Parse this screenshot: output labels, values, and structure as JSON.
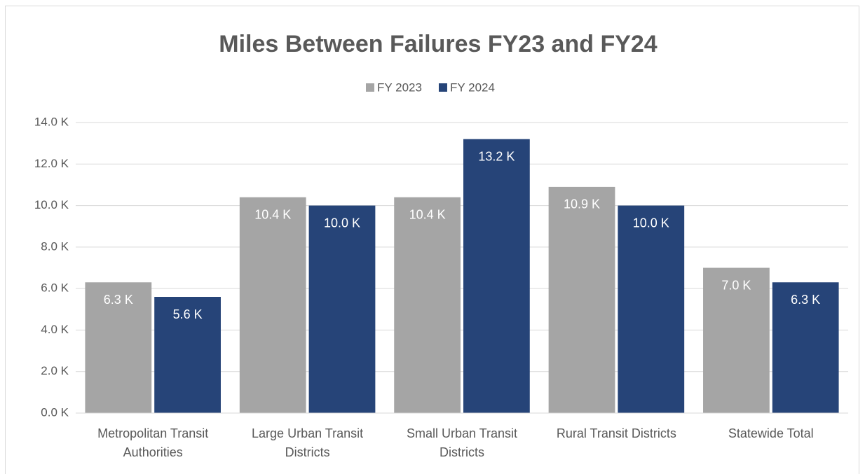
{
  "chart_data": {
    "type": "bar",
    "title": "Miles Between Failures FY23 and FY24",
    "categories": [
      "Metropolitan Transit Authorities",
      "Large Urban Transit Districts",
      "Small Urban Transit Districts",
      "Rural Transit Districts",
      "Statewide Total"
    ],
    "series": [
      {
        "name": "FY 2023",
        "color": "#a5a5a5",
        "values": [
          6300,
          10400,
          10400,
          10900,
          7000
        ],
        "value_labels": [
          "6.3 K",
          "10.4 K",
          "10.4 K",
          "10.9 K",
          "7.0 K"
        ]
      },
      {
        "name": "FY 2024",
        "color": "#264478",
        "values": [
          5600,
          10000,
          13200,
          10000,
          6300
        ],
        "value_labels": [
          "5.6 K",
          "10.0 K",
          "13.2 K",
          "10.0 K",
          "6.3 K"
        ]
      }
    ],
    "ylim": [
      0,
      14000
    ],
    "yticks": [
      {
        "value": 0,
        "label": "0.0 K"
      },
      {
        "value": 2000,
        "label": "2.0 K"
      },
      {
        "value": 4000,
        "label": "4.0 K"
      },
      {
        "value": 6000,
        "label": "6.0 K"
      },
      {
        "value": 8000,
        "label": "8.0 K"
      },
      {
        "value": 10000,
        "label": "10.0 K"
      },
      {
        "value": 12000,
        "label": "12.0 K"
      },
      {
        "value": 14000,
        "label": "14.0 K"
      }
    ],
    "grid": true,
    "legend": "top"
  }
}
